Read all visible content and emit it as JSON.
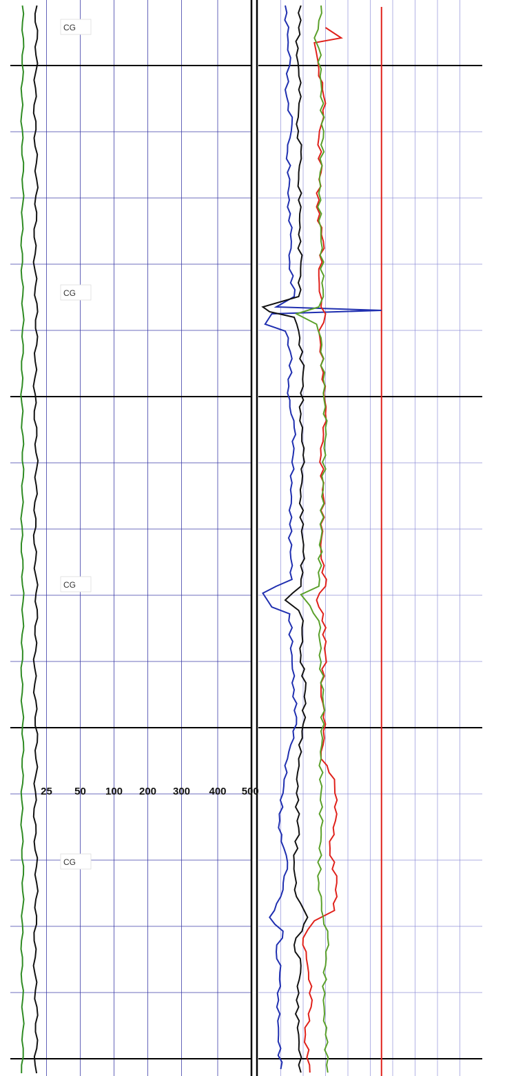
{
  "chart_data": {
    "type": "line",
    "title": "",
    "colors": {
      "grid_minor": "#3c3ca8",
      "grid_major": "#000000",
      "track2_grid": "#9090d8",
      "green": "#2e8b22",
      "black": "#111111",
      "blue": "#1f2fb0",
      "red": "#e0201a",
      "lime": "#5aa02a"
    },
    "track1": {
      "scale_labels": [
        "25",
        "50",
        "100",
        "200",
        "300",
        "400",
        "500"
      ],
      "annotations": [
        {
          "text": "CG",
          "depth": 40
        },
        {
          "text": "CG",
          "depth": 425
        },
        {
          "text": "CG",
          "depth": 848
        },
        {
          "text": "CG",
          "depth": 1250
        }
      ],
      "series": [
        {
          "color_key": "green",
          "x": 0.05,
          "wobble": 0.004
        },
        {
          "color_key": "black",
          "x": 0.105,
          "wobble": 0.006
        }
      ]
    },
    "track2": {
      "series": [
        {
          "color_key": "blue",
          "points": [
            [
              8,
              0.12
            ],
            [
              50,
              0.13
            ],
            [
              95,
              0.14
            ],
            [
              130,
              0.12
            ],
            [
              180,
              0.15
            ],
            [
              220,
              0.13
            ],
            [
              260,
              0.14
            ],
            [
              300,
              0.13
            ],
            [
              330,
              0.15
            ],
            [
              380,
              0.14
            ],
            [
              430,
              0.16
            ],
            [
              445,
              0.08
            ],
            [
              450,
              0.55
            ],
            [
              455,
              0.06
            ],
            [
              470,
              0.03
            ],
            [
              480,
              0.12
            ],
            [
              520,
              0.15
            ],
            [
              570,
              0.13
            ],
            [
              620,
              0.16
            ],
            [
              700,
              0.15
            ],
            [
              760,
              0.14
            ],
            [
              840,
              0.15
            ],
            [
              860,
              0.02
            ],
            [
              880,
              0.06
            ],
            [
              890,
              0.14
            ],
            [
              950,
              0.15
            ],
            [
              1000,
              0.16
            ],
            [
              1050,
              0.17
            ],
            [
              1100,
              0.13
            ],
            [
              1150,
              0.11
            ],
            [
              1200,
              0.09
            ],
            [
              1250,
              0.13
            ],
            [
              1300,
              0.1
            ],
            [
              1330,
              0.05
            ],
            [
              1350,
              0.11
            ],
            [
              1380,
              0.08
            ],
            [
              1400,
              0.1
            ],
            [
              1450,
              0.09
            ],
            [
              1500,
              0.09
            ],
            [
              1550,
              0.1
            ]
          ]
        },
        {
          "color_key": "black",
          "points": [
            [
              8,
              0.19
            ],
            [
              40,
              0.18
            ],
            [
              80,
              0.17
            ],
            [
              100,
              0.18
            ],
            [
              140,
              0.19
            ],
            [
              180,
              0.17
            ],
            [
              220,
              0.19
            ],
            [
              260,
              0.18
            ],
            [
              300,
              0.19
            ],
            [
              340,
              0.18
            ],
            [
              380,
              0.19
            ],
            [
              430,
              0.18
            ],
            [
              445,
              0.02
            ],
            [
              452,
              0.05
            ],
            [
              460,
              0.16
            ],
            [
              480,
              0.18
            ],
            [
              540,
              0.2
            ],
            [
              600,
              0.19
            ],
            [
              660,
              0.2
            ],
            [
              720,
              0.19
            ],
            [
              800,
              0.2
            ],
            [
              850,
              0.19
            ],
            [
              870,
              0.12
            ],
            [
              885,
              0.18
            ],
            [
              900,
              0.2
            ],
            [
              950,
              0.19
            ],
            [
              1000,
              0.21
            ],
            [
              1050,
              0.2
            ],
            [
              1100,
              0.18
            ],
            [
              1150,
              0.17
            ],
            [
              1200,
              0.18
            ],
            [
              1250,
              0.16
            ],
            [
              1300,
              0.17
            ],
            [
              1330,
              0.22
            ],
            [
              1370,
              0.16
            ],
            [
              1400,
              0.19
            ],
            [
              1450,
              0.17
            ],
            [
              1500,
              0.18
            ],
            [
              1555,
              0.19
            ]
          ]
        },
        {
          "color_key": "red",
          "points": [
            [
              40,
              0.3
            ],
            [
              55,
              0.37
            ],
            [
              62,
              0.25
            ],
            [
              100,
              0.27
            ],
            [
              150,
              0.3
            ],
            [
              200,
              0.27
            ],
            [
              250,
              0.28
            ],
            [
              300,
              0.26
            ],
            [
              350,
              0.29
            ],
            [
              400,
              0.27
            ],
            [
              445,
              0.28
            ],
            [
              455,
              0.3
            ],
            [
              480,
              0.27
            ],
            [
              540,
              0.29
            ],
            [
              600,
              0.3
            ],
            [
              660,
              0.28
            ],
            [
              720,
              0.29
            ],
            [
              800,
              0.28
            ],
            [
              850,
              0.3
            ],
            [
              870,
              0.26
            ],
            [
              890,
              0.29
            ],
            [
              950,
              0.3
            ],
            [
              1000,
              0.28
            ],
            [
              1050,
              0.3
            ],
            [
              1100,
              0.28
            ],
            [
              1130,
              0.34
            ],
            [
              1180,
              0.35
            ],
            [
              1230,
              0.32
            ],
            [
              1280,
              0.35
            ],
            [
              1320,
              0.34
            ],
            [
              1335,
              0.25
            ],
            [
              1360,
              0.2
            ],
            [
              1400,
              0.22
            ],
            [
              1450,
              0.24
            ],
            [
              1500,
              0.21
            ],
            [
              1555,
              0.23
            ]
          ]
        },
        {
          "color_key": "lime",
          "points": [
            [
              8,
              0.28
            ],
            [
              30,
              0.27
            ],
            [
              55,
              0.25
            ],
            [
              70,
              0.27
            ],
            [
              120,
              0.28
            ],
            [
              200,
              0.29
            ],
            [
              280,
              0.27
            ],
            [
              350,
              0.28
            ],
            [
              430,
              0.29
            ],
            [
              445,
              0.27
            ],
            [
              455,
              0.17
            ],
            [
              470,
              0.26
            ],
            [
              490,
              0.28
            ],
            [
              550,
              0.29
            ],
            [
              620,
              0.3
            ],
            [
              700,
              0.29
            ],
            [
              780,
              0.28
            ],
            [
              850,
              0.27
            ],
            [
              862,
              0.19
            ],
            [
              878,
              0.23
            ],
            [
              900,
              0.27
            ],
            [
              960,
              0.28
            ],
            [
              1020,
              0.29
            ],
            [
              1100,
              0.28
            ],
            [
              1200,
              0.28
            ],
            [
              1280,
              0.27
            ],
            [
              1330,
              0.29
            ],
            [
              1360,
              0.31
            ],
            [
              1400,
              0.3
            ],
            [
              1450,
              0.29
            ],
            [
              1500,
              0.3
            ],
            [
              1555,
              0.31
            ]
          ]
        }
      ]
    }
  }
}
